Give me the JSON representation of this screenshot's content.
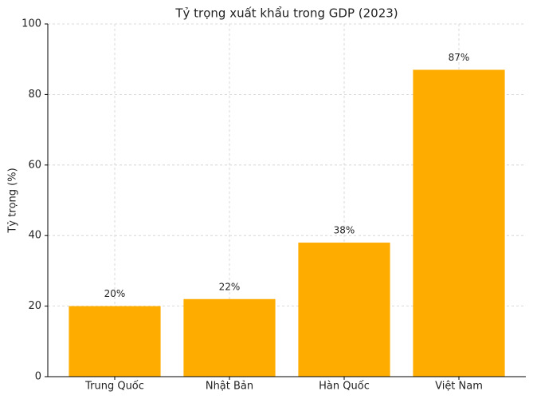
{
  "chart_data": {
    "type": "bar",
    "title": "Tỷ trọng xuất khẩu trong GDP (2023)",
    "y_label": "Tỷ trọng (%)",
    "categories": [
      "Trung Quốc",
      "Nhật Bản",
      "Hàn Quốc",
      "Việt Nam"
    ],
    "values": [
      20,
      22,
      38,
      87
    ],
    "value_labels": [
      "20%",
      "22%",
      "38%",
      "87%"
    ],
    "color": "#ffac00",
    "ylim": [
      0,
      100
    ],
    "yticks": [
      0,
      20,
      40,
      60,
      80,
      100
    ],
    "grid": true
  }
}
